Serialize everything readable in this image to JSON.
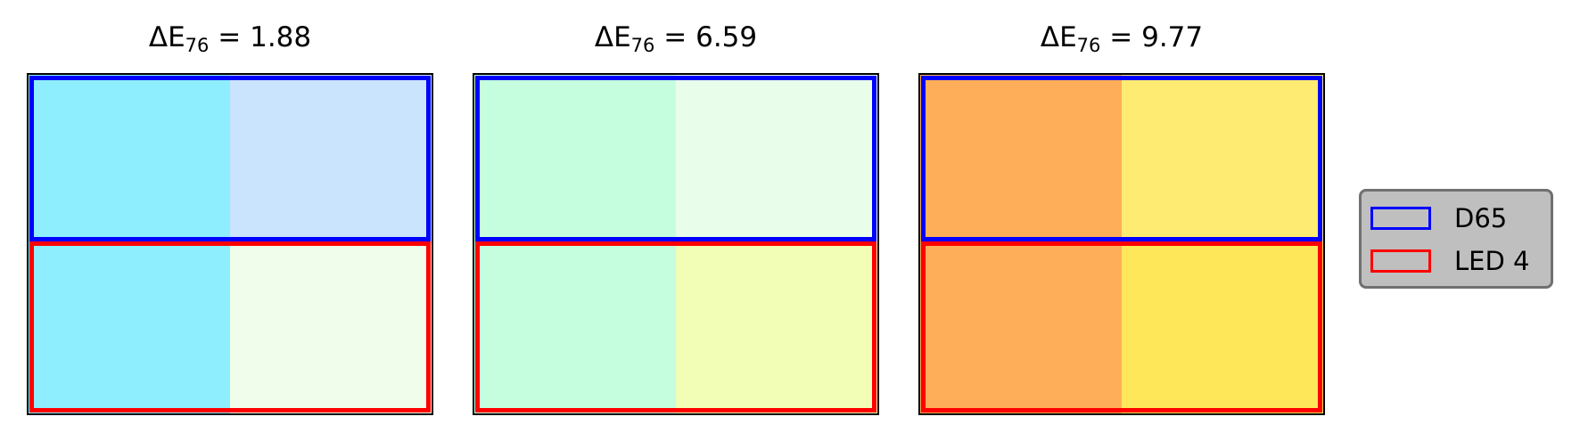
{
  "chart_data": {
    "type": "heatmap",
    "legend": {
      "placement": "right",
      "entries": [
        {
          "name": "D65",
          "color": "#0000ff"
        },
        {
          "name": "LED 4",
          "color": "#ff0000"
        }
      ]
    },
    "panels": [
      {
        "title_prefix": "ΔE",
        "title_sub": "76",
        "title_value": "= 1.88",
        "rows": {
          "D65": [
            "#8eeefe",
            "#cae4fe"
          ],
          "LED 4": [
            "#8eeefe",
            "#effdea"
          ]
        }
      },
      {
        "title_prefix": "ΔE",
        "title_sub": "76",
        "title_value": "= 6.59",
        "rows": {
          "D65": [
            "#c5fede",
            "#e8feea"
          ],
          "LED 4": [
            "#c5fede",
            "#f2feb6"
          ]
        }
      },
      {
        "title_prefix": "ΔE",
        "title_sub": "76",
        "title_value": "= 9.77",
        "rows": {
          "D65": [
            "#feae58",
            "#feec72"
          ],
          "LED 4": [
            "#feae58",
            "#fee758"
          ]
        }
      }
    ]
  }
}
